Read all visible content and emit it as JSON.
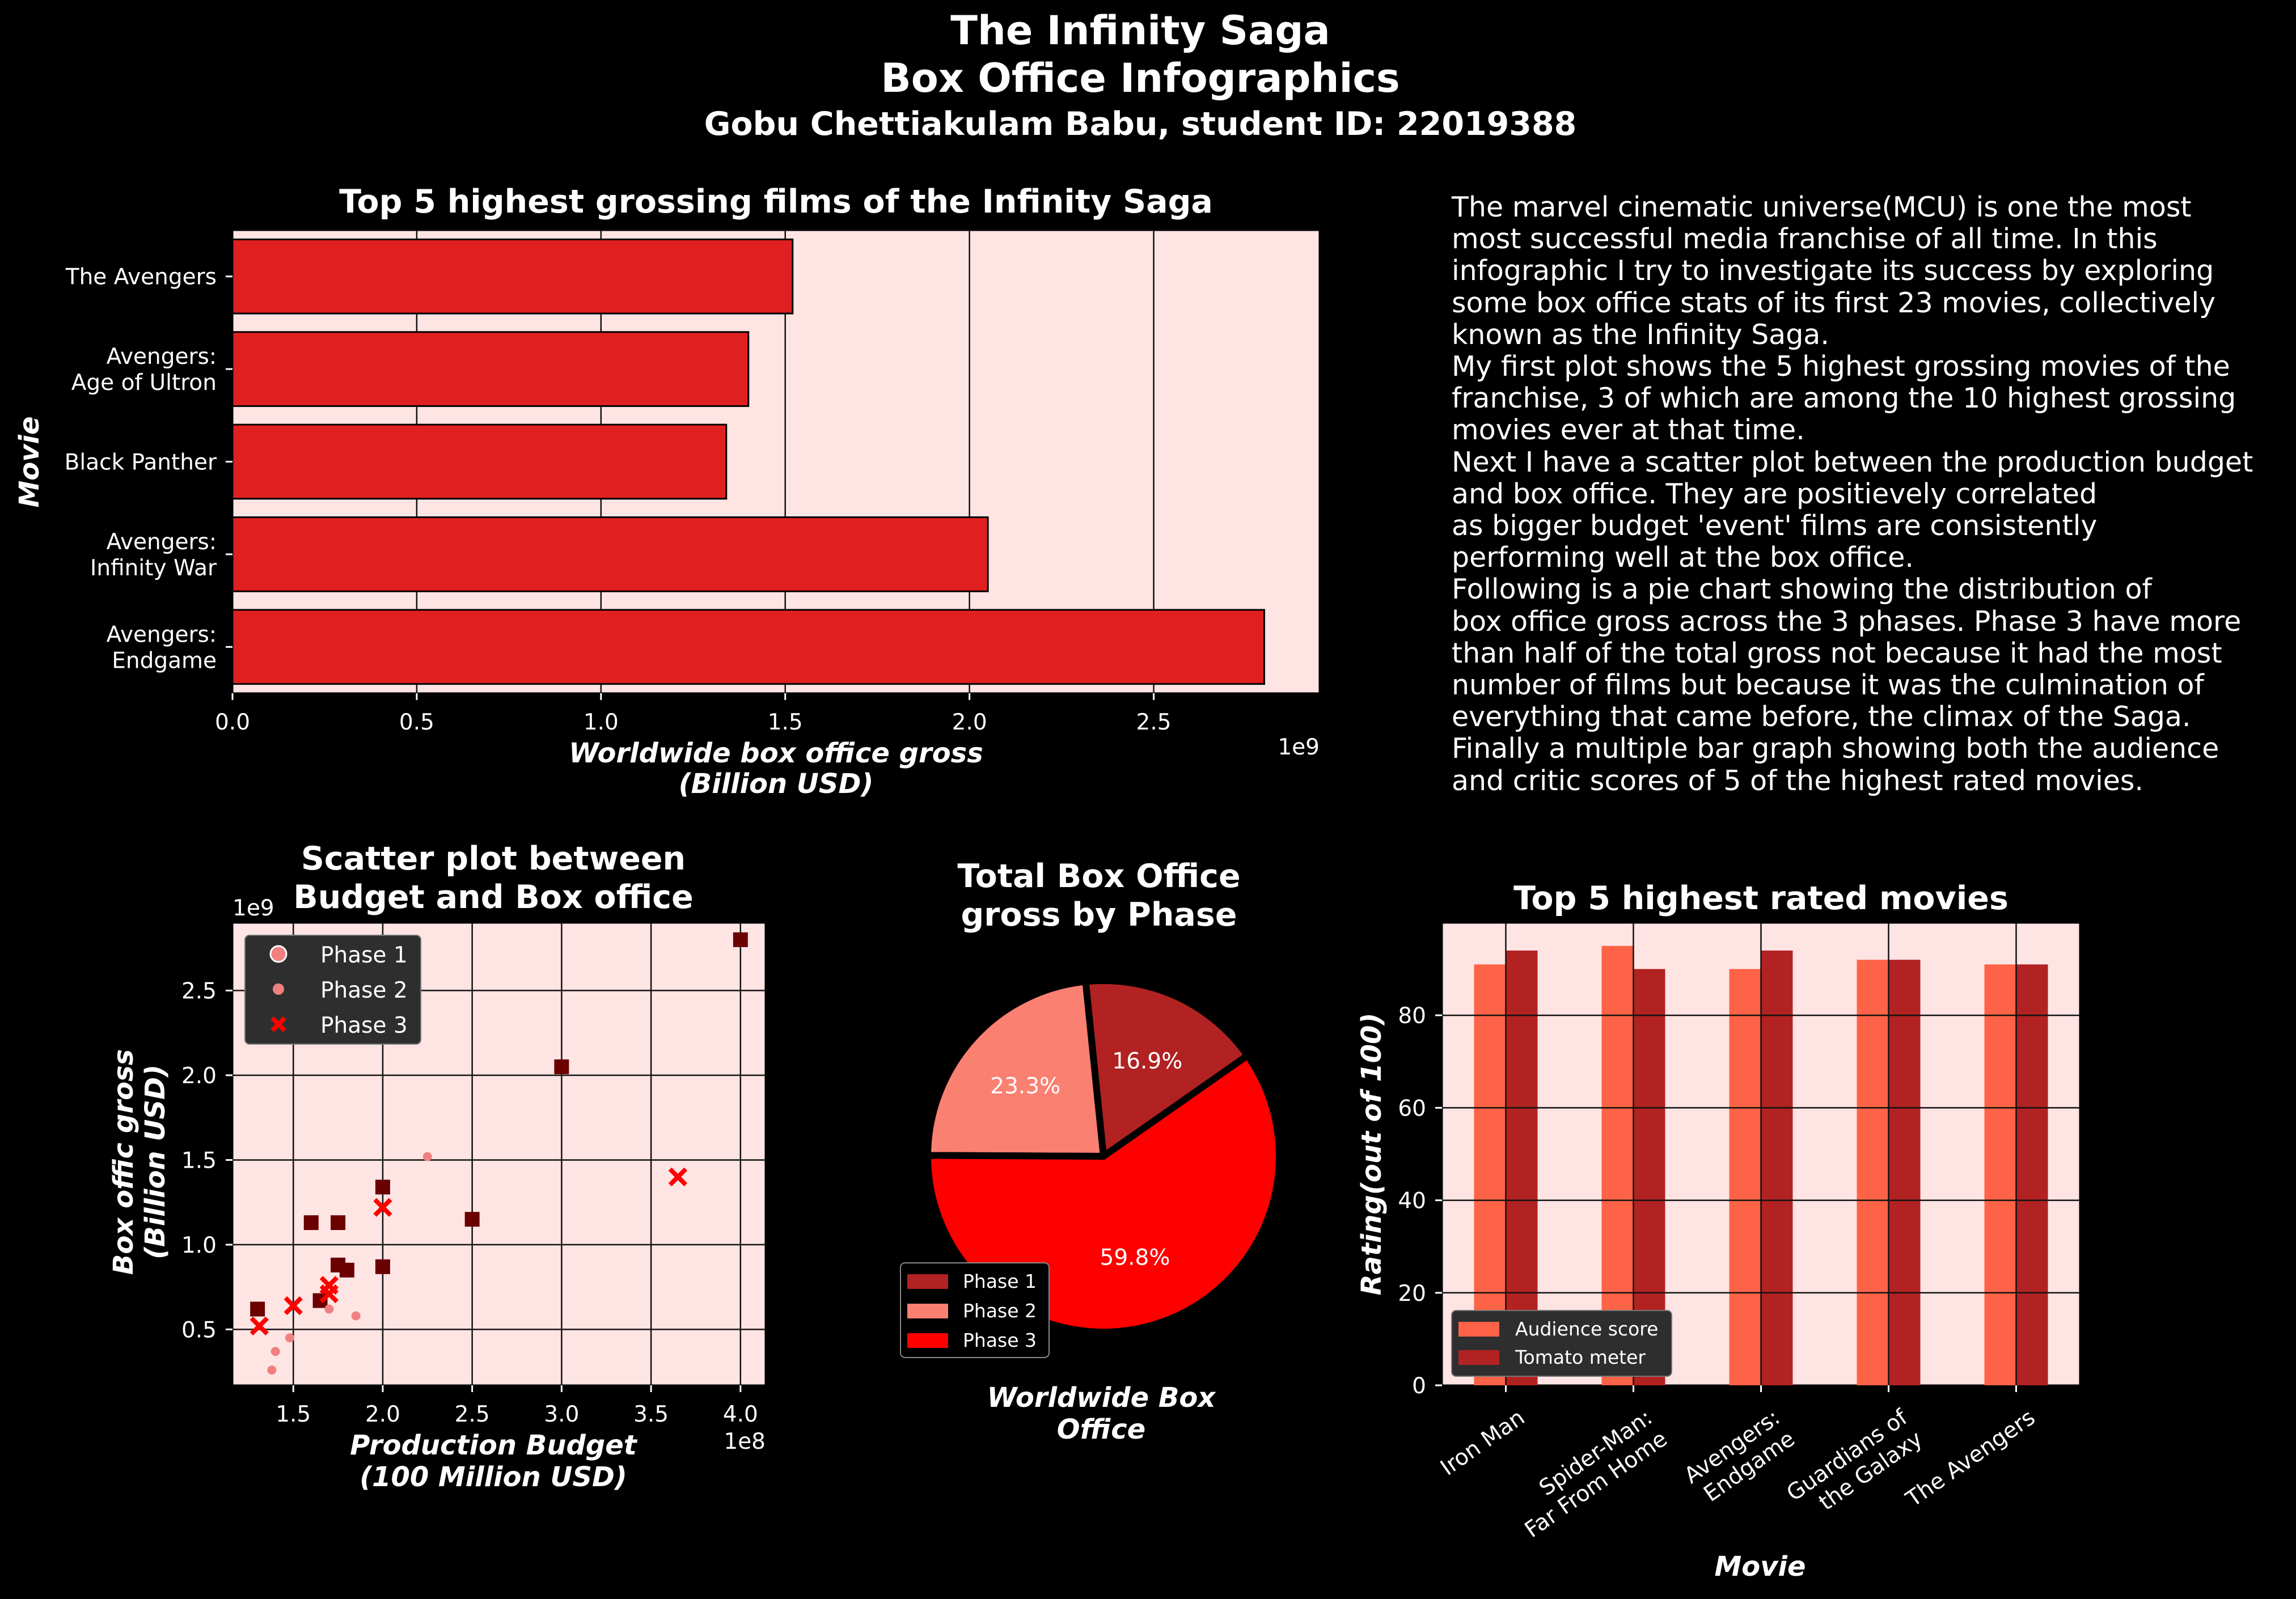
{
  "header": {
    "title_line1": "The Infinity Saga",
    "title_line2": "Box Office Infographics",
    "subtitle": "Gobu Chettiakulam Babu, student ID: 22019388"
  },
  "description": {
    "lines": [
      "The marvel cinematic universe(MCU) is one the most",
      "most successful media franchise of all time. In this",
      "infographic I try to investigate its success by exploring",
      "some box office stats of its first 23 movies, collectively",
      "known as the Infinity Saga.",
      "My first plot shows the 5 highest grossing movies of the",
      "franchise, 3 of which are among the 10 highest grossing",
      "movies ever at that time.",
      "Next I have a scatter plot between the production budget",
      "and box office. They are positievely correlated",
      "as bigger budget 'event' films are consistently",
      "performing well at the box office.",
      "Following is a pie chart showing the distribution of",
      "box office gross across the 3 phases. Phase 3 have more",
      "than half of the total gross not because it had the most",
      "number of films but because it was the culmination of",
      "everything that came before, the climax of the Saga.",
      "Finally a multiple bar graph showing both the audience",
      "and critic scores of 5 of the highest rated movies."
    ]
  },
  "chart_data": [
    {
      "type": "bar",
      "orientation": "horizontal",
      "title": "Top 5 highest grossing films of the Infinity Saga",
      "xlabel_lines": [
        "Worldwide box office gross",
        "(Billion USD)"
      ],
      "ylabel": "Movie",
      "x_offset_label": "1e9",
      "categories": [
        [
          "The Avengers"
        ],
        [
          "Avengers:",
          "Age of Ultron"
        ],
        [
          "Black Panther"
        ],
        [
          "Avengers:",
          "Infinity War"
        ],
        [
          "Avengers:",
          "Endgame"
        ]
      ],
      "values": [
        1.52,
        1.4,
        1.34,
        2.05,
        2.8
      ],
      "value_scale": "1e9",
      "xlim": [
        0,
        2.95
      ],
      "xticks": [
        "0.0",
        "0.5",
        "1.0",
        "1.5",
        "2.0",
        "2.5"
      ],
      "grid": "x",
      "colors": {
        "bar": "#e02020",
        "background": "#ffe4e4"
      }
    },
    {
      "type": "scatter",
      "title_lines": [
        "Scatter plot between",
        "Budget and Box office"
      ],
      "xlabel_lines": [
        "Production Budget",
        "(100 Million USD)"
      ],
      "ylabel_lines": [
        "Box offic gross",
        "(Billion USD)"
      ],
      "x_offset_label": "1e8",
      "y_offset_label": "1e9",
      "xlim": [
        1.16,
        4.14
      ],
      "ylim": [
        0.17,
        2.9
      ],
      "xticks": [
        "1.5",
        "2.0",
        "2.5",
        "3.0",
        "3.5",
        "4.0"
      ],
      "yticks": [
        "0.5",
        "1.0",
        "1.5",
        "2.0",
        "2.5"
      ],
      "grid": "both",
      "legend": {
        "placement": "upper-left",
        "entries": [
          "Phase 1",
          "Phase 2",
          "Phase 3"
        ]
      },
      "series": [
        {
          "name": "Phase 1",
          "marker": "square",
          "color": "#6b0000",
          "x": [
            1.3,
            1.6,
            1.65,
            1.75,
            1.75,
            1.8,
            2.0,
            2.0,
            2.5,
            3.0,
            4.0
          ],
          "y": [
            0.62,
            1.13,
            0.67,
            1.13,
            0.88,
            0.85,
            1.34,
            0.87,
            1.15,
            2.05,
            2.8
          ]
        },
        {
          "name": "Phase 2",
          "marker": "circle",
          "color": "#f08080",
          "x": [
            1.38,
            1.4,
            1.48,
            1.7,
            1.85,
            2.25
          ],
          "y": [
            0.26,
            0.37,
            0.45,
            0.62,
            0.58,
            1.52
          ]
        },
        {
          "name": "Phase 3",
          "marker": "x",
          "color": "#ff0000",
          "x": [
            1.31,
            1.5,
            1.7,
            1.7,
            2.0,
            3.65
          ],
          "y": [
            0.52,
            0.64,
            0.71,
            0.76,
            1.22,
            1.4
          ]
        }
      ]
    },
    {
      "type": "pie",
      "title_lines": [
        "Total Box Office",
        "gross by Phase"
      ],
      "xlabel_lines": [
        "Worldwide Box",
        "Office"
      ],
      "legend": {
        "placement": "lower-left"
      },
      "slices": [
        {
          "label": "Phase 1",
          "value": 16.9,
          "pct": "16.9%",
          "color": "#b22222"
        },
        {
          "label": "Phase 2",
          "value": 23.3,
          "pct": "23.3%",
          "color": "#fa8072"
        },
        {
          "label": "Phase 3",
          "value": 59.8,
          "pct": "59.8%",
          "color": "#ff0000"
        }
      ]
    },
    {
      "type": "bar",
      "title": "Top 5 highest rated movies",
      "xlabel": "Movie",
      "ylabel": "Rating(out of 100)",
      "categories": [
        [
          "Iron Man"
        ],
        [
          "Spider-Man:",
          "Far From Home"
        ],
        [
          "Avengers:",
          "Endgame"
        ],
        [
          "Guardians of",
          "the Galaxy"
        ],
        [
          "The Avengers"
        ]
      ],
      "ylim": [
        0,
        100
      ],
      "yticks": [
        "0",
        "20",
        "40",
        "60",
        "80"
      ],
      "grid": "both",
      "legend": {
        "placement": "lower-left"
      },
      "series": [
        {
          "name": "Audience score",
          "color": "#ff6347",
          "values": [
            91,
            95,
            90,
            92,
            91
          ]
        },
        {
          "name": "Tomato meter",
          "color": "#b22222",
          "values": [
            94,
            90,
            94,
            92,
            91
          ]
        }
      ]
    }
  ]
}
